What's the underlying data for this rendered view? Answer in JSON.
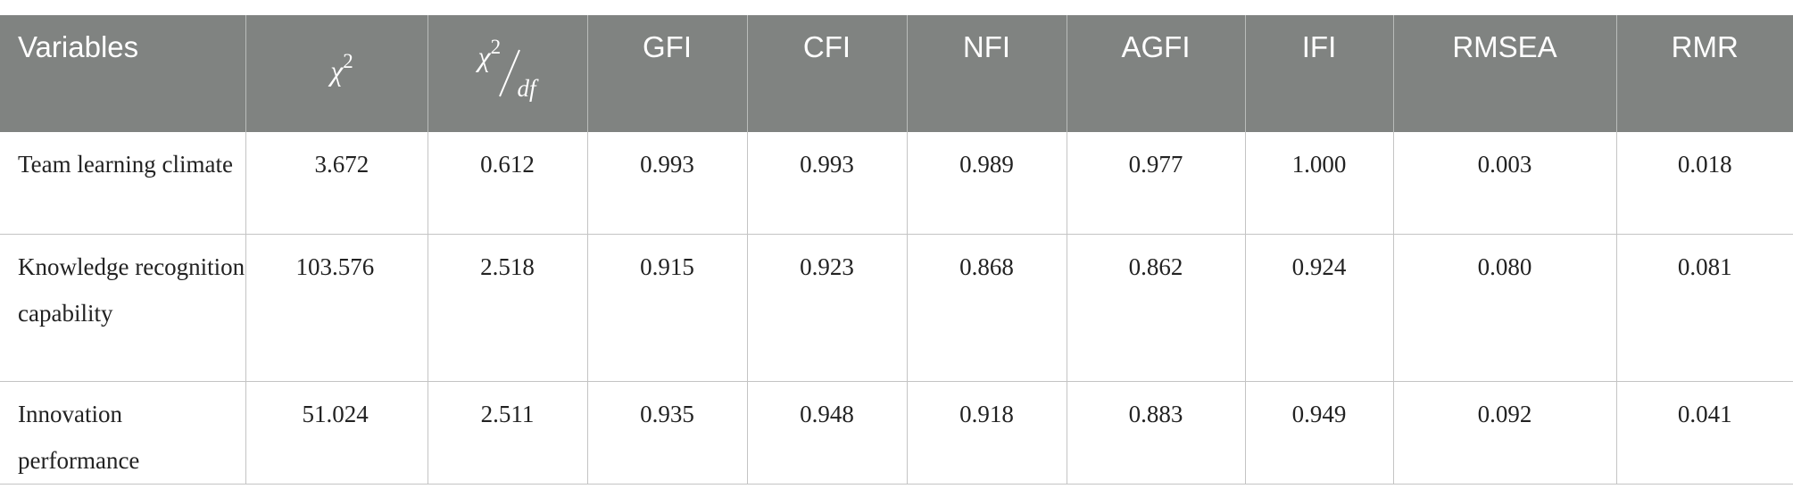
{
  "table": {
    "headers": [
      "Variables",
      "χ2",
      "χ2/df",
      "GFI",
      "CFI",
      "NFI",
      "AGFI",
      "IFI",
      "RMSEA",
      "RMR"
    ],
    "chi_header": {
      "symbol": "χ",
      "sup": "2"
    },
    "chi_df_header": {
      "symbol": "χ",
      "sup": "2",
      "denominator": "df"
    },
    "rows": [
      {
        "variable": "Team learning climate",
        "chi2": "3.672",
        "chi2_df": "0.612",
        "gfi": "0.993",
        "cfi": "0.993",
        "nfi": "0.989",
        "agfi": "0.977",
        "ifi": "1.000",
        "rmsea": "0.003",
        "rmr": "0.018"
      },
      {
        "variable": "Knowledge recognition capability",
        "chi2": "103.576",
        "chi2_df": "2.518",
        "gfi": "0.915",
        "cfi": "0.923",
        "nfi": "0.868",
        "agfi": "0.862",
        "ifi": "0.924",
        "rmsea": "0.080",
        "rmr": "0.081"
      },
      {
        "variable": "Innovation performance",
        "chi2": "51.024",
        "chi2_df": "2.511",
        "gfi": "0.935",
        "cfi": "0.948",
        "nfi": "0.918",
        "agfi": "0.883",
        "ifi": "0.949",
        "rmsea": "0.092",
        "rmr": "0.041"
      }
    ]
  }
}
